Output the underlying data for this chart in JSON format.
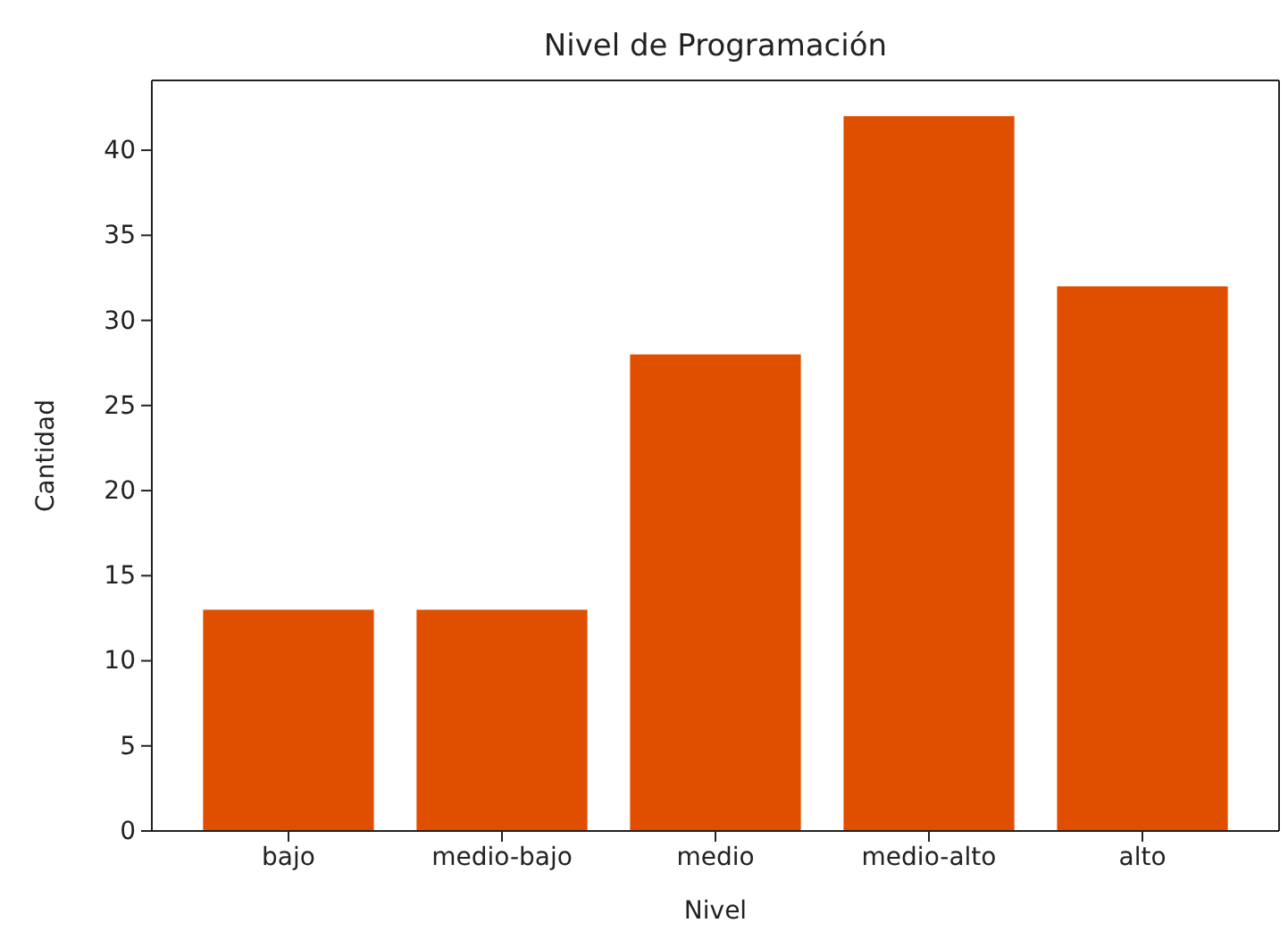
{
  "chart_data": {
    "type": "bar",
    "title": "Nivel de Programación",
    "xlabel": "Nivel",
    "ylabel": "Cantidad",
    "categories": [
      "bajo",
      "medio-bajo",
      "medio",
      "medio-alto",
      "alto"
    ],
    "values": [
      13,
      13,
      28,
      42,
      32
    ],
    "color": "#e04f00",
    "ylim": [
      0,
      44.1
    ],
    "yticks": [
      0,
      5,
      10,
      15,
      20,
      25,
      30,
      35,
      40
    ],
    "grid": false
  }
}
